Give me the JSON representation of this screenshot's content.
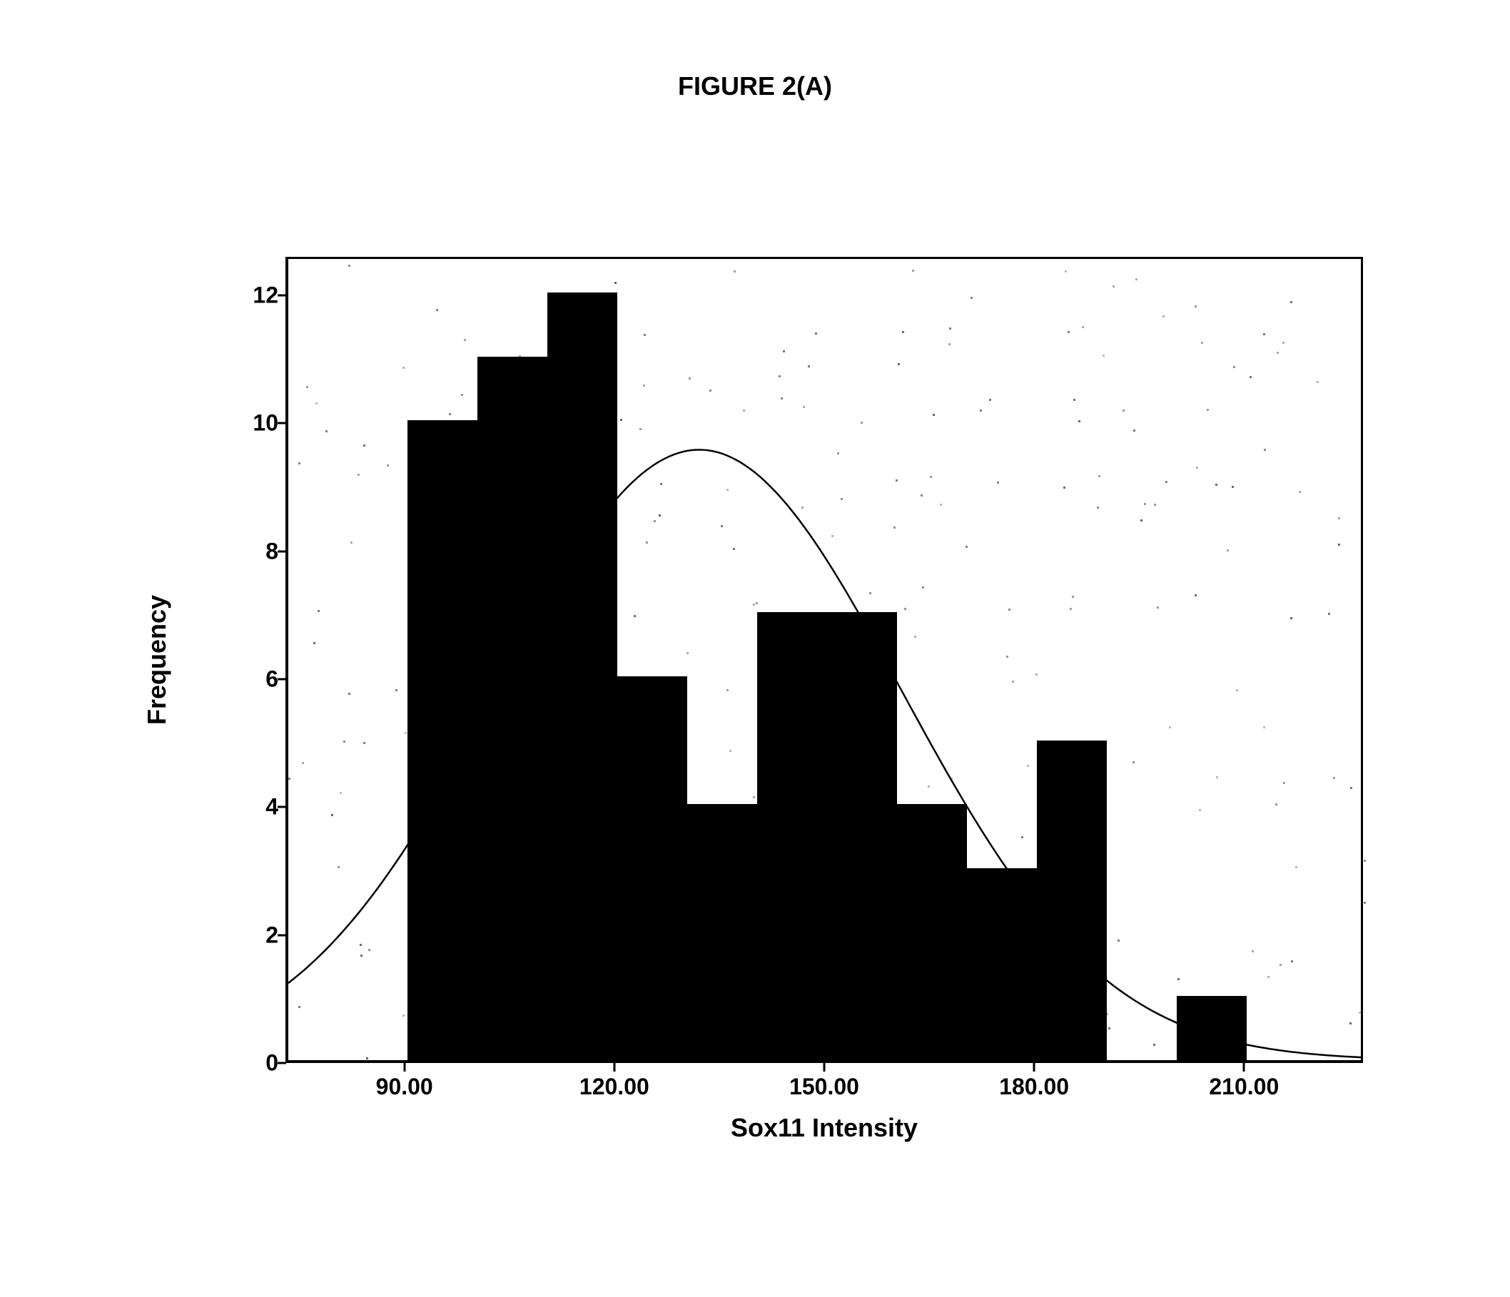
{
  "figure_title": "FIGURE 2(A)",
  "chart": {
    "type": "histogram-with-normal-curve",
    "x_label": "Sox11 Intensity",
    "y_label": "Frequency",
    "background_color": "#ffffff",
    "frame_color": "#000000",
    "bar_color": "#000000",
    "curve_color": "#000000",
    "curve_width": 2.5,
    "tick_label_fontsize": 32,
    "axis_label_fontsize": 36,
    "title_fontsize": 36,
    "xlim": [
      73,
      227
    ],
    "ylim": [
      0,
      12.6
    ],
    "x_ticks": [
      90.0,
      120.0,
      150.0,
      180.0,
      210.0
    ],
    "x_tick_labels": [
      "90.00",
      "120.00",
      "150.00",
      "180.00",
      "210.00"
    ],
    "y_ticks": [
      0,
      2,
      4,
      6,
      8,
      10,
      12
    ],
    "y_tick_labels": [
      "0",
      "2",
      "4",
      "6",
      "8",
      "10",
      "12"
    ],
    "bins": [
      {
        "x_start": 90,
        "x_end": 100,
        "count": 10
      },
      {
        "x_start": 100,
        "x_end": 110,
        "count": 11
      },
      {
        "x_start": 110,
        "x_end": 120,
        "count": 12
      },
      {
        "x_start": 120,
        "x_end": 130,
        "count": 6
      },
      {
        "x_start": 130,
        "x_end": 140,
        "count": 4
      },
      {
        "x_start": 140,
        "x_end": 150,
        "count": 7
      },
      {
        "x_start": 150,
        "x_end": 160,
        "count": 7
      },
      {
        "x_start": 160,
        "x_end": 170,
        "count": 4
      },
      {
        "x_start": 170,
        "x_end": 180,
        "count": 3
      },
      {
        "x_start": 180,
        "x_end": 190,
        "count": 5
      },
      {
        "x_start": 200,
        "x_end": 210,
        "count": 1
      }
    ],
    "normal_curve": {
      "mean": 132,
      "sd": 29,
      "peak_y": 9.6
    }
  }
}
